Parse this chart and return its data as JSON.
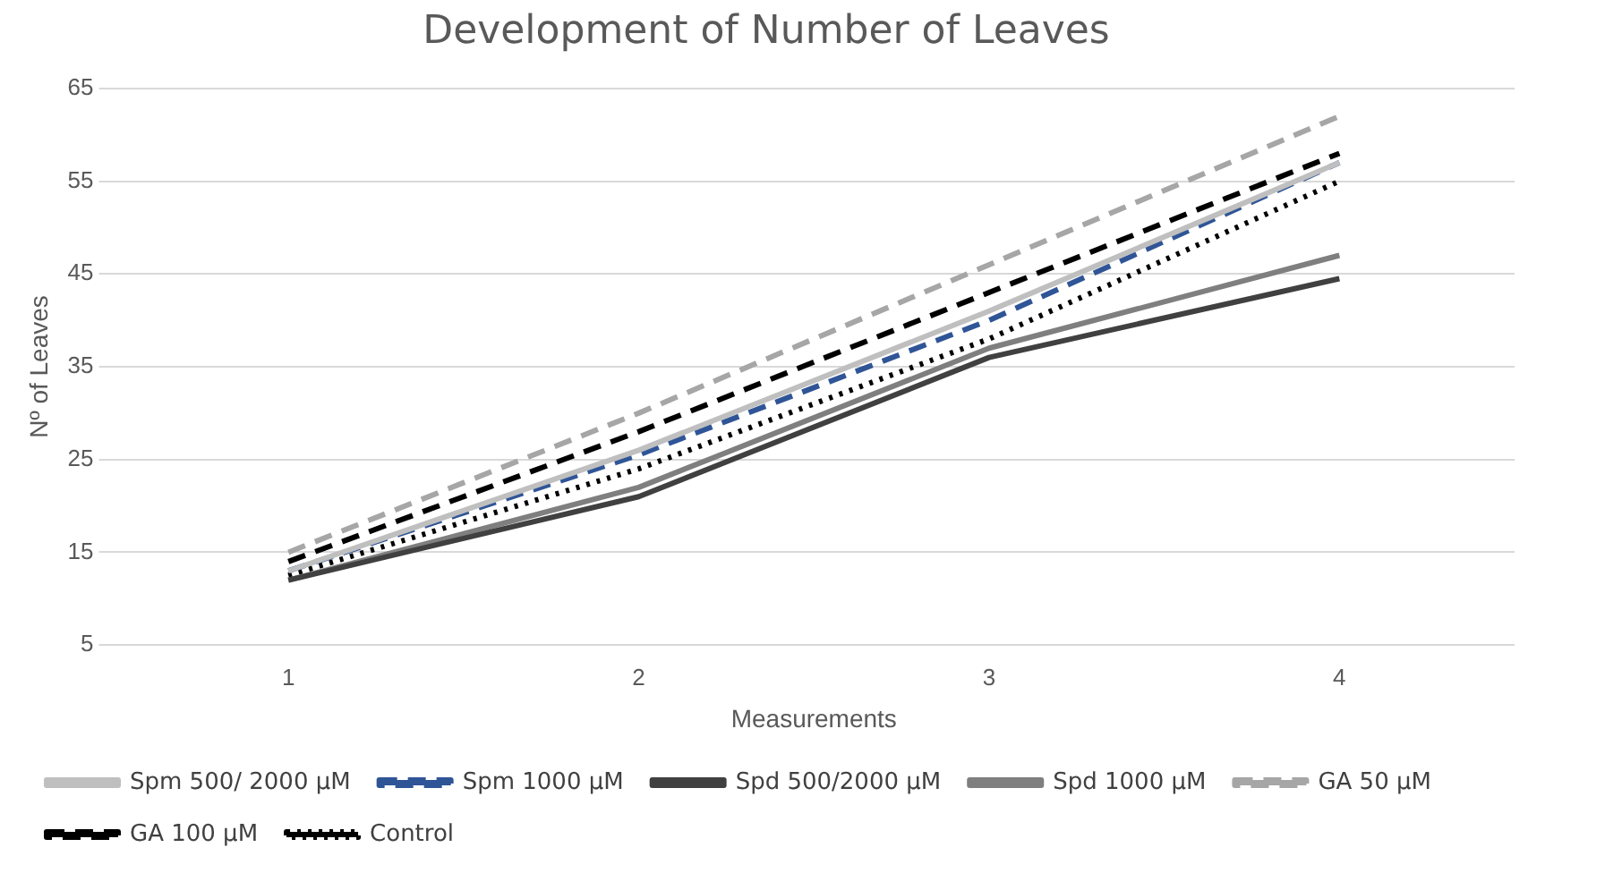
{
  "chart_data": {
    "type": "line",
    "title": "Development of Number of Leaves",
    "xlabel": "Measurements",
    "ylabel": "Nº of Leaves",
    "categories": [
      "1",
      "2",
      "3",
      "4"
    ],
    "series": [
      {
        "name": "Spm 500/ 2000 µM",
        "color": "#bfbfbf",
        "line_style": "solid",
        "values": [
          13,
          26,
          41,
          57
        ]
      },
      {
        "name": "Spm 1000 µM",
        "color": "#2f5597",
        "line_style": "dashed",
        "values": [
          13,
          25.5,
          40,
          57
        ]
      },
      {
        "name": "Spd 500/2000 µM",
        "color": "#404040",
        "line_style": "solid",
        "values": [
          12,
          21,
          36,
          44.5
        ]
      },
      {
        "name": "Spd 1000 µM",
        "color": "#7f7f7f",
        "line_style": "solid",
        "values": [
          12,
          22,
          37,
          47
        ]
      },
      {
        "name": "GA 50 µM",
        "color": "#a6a6a6",
        "line_style": "dashed",
        "values": [
          15,
          30,
          46,
          62
        ]
      },
      {
        "name": "GA 100 µM",
        "color": "#000000",
        "line_style": "dashed",
        "values": [
          14,
          28,
          43,
          58
        ]
      },
      {
        "name": "Control",
        "color": "#000000",
        "line_style": "dotted",
        "values": [
          12.5,
          24,
          38,
          55
        ]
      }
    ],
    "ylim": [
      5,
      65
    ],
    "yticks": [
      5,
      15,
      25,
      35,
      45,
      55,
      65
    ],
    "grid": "y",
    "legend": "bottom",
    "marker": "none"
  }
}
